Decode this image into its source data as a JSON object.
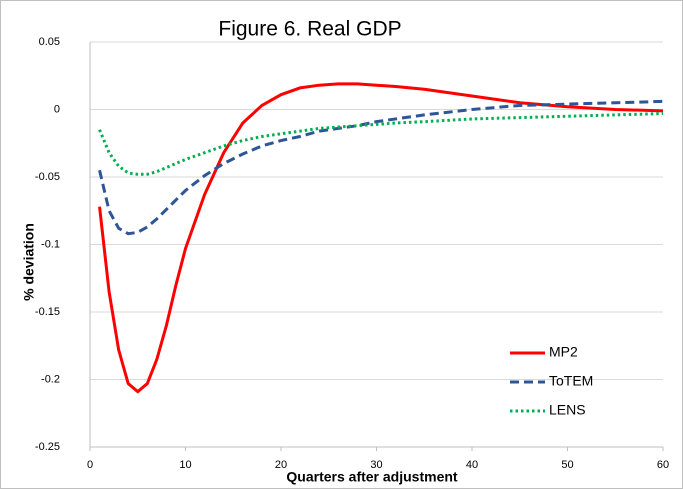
{
  "chart_data": {
    "type": "line",
    "title": "Figure 6.  Real GDP",
    "x_label": "Quarters after adjustment",
    "y_label": "% deviation",
    "x": [
      1,
      2,
      3,
      4,
      5,
      6,
      7,
      8,
      9,
      10,
      12,
      14,
      16,
      18,
      20,
      22,
      24,
      26,
      28,
      30,
      32,
      35,
      40,
      45,
      50,
      55,
      60
    ],
    "series": [
      {
        "name": "MP2",
        "color": "#ff0000",
        "style": "solid",
        "values": [
          -0.072,
          -0.135,
          -0.178,
          -0.203,
          -0.209,
          -0.203,
          -0.185,
          -0.16,
          -0.13,
          -0.103,
          -0.063,
          -0.032,
          -0.01,
          0.003,
          0.011,
          0.016,
          0.018,
          0.019,
          0.019,
          0.018,
          0.017,
          0.015,
          0.01,
          0.005,
          0.002,
          0.0,
          -0.001
        ]
      },
      {
        "name": "ToTEM",
        "color": "#2e5597",
        "style": "dashed",
        "values": [
          -0.045,
          -0.075,
          -0.088,
          -0.092,
          -0.091,
          -0.087,
          -0.081,
          -0.074,
          -0.067,
          -0.06,
          -0.049,
          -0.04,
          -0.033,
          -0.027,
          -0.023,
          -0.02,
          -0.016,
          -0.014,
          -0.012,
          -0.009,
          -0.007,
          -0.004,
          0.0,
          0.003,
          0.004,
          0.005,
          0.006
        ]
      },
      {
        "name": "LENS",
        "color": "#00b050",
        "style": "dotted",
        "values": [
          -0.015,
          -0.032,
          -0.042,
          -0.047,
          -0.048,
          -0.048,
          -0.046,
          -0.043,
          -0.04,
          -0.037,
          -0.032,
          -0.027,
          -0.023,
          -0.02,
          -0.018,
          -0.016,
          -0.014,
          -0.013,
          -0.012,
          -0.011,
          -0.01,
          -0.009,
          -0.007,
          -0.006,
          -0.005,
          -0.004,
          -0.003
        ]
      }
    ],
    "xlim": [
      0,
      60
    ],
    "xticks": [
      0,
      10,
      20,
      30,
      40,
      50,
      60
    ],
    "ylim": [
      -0.25,
      0.05
    ],
    "yticks": [
      0.05,
      0,
      -0.05,
      -0.1,
      -0.15,
      -0.2,
      -0.25
    ],
    "grid": true,
    "legend": "lower right"
  }
}
